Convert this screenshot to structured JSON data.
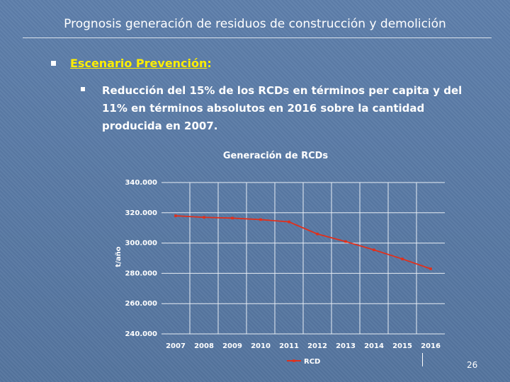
{
  "slide": {
    "title": "Prognosis generación de residuos de construcción y demolición",
    "bullet1_label": "Escenario Prevención",
    "bullet1_suffix": ":",
    "bullet2_text": "Reducción del 15% de los RCDs en términos per capita y del 11% en términos absolutos en 2016 sobre la cantidad producida en 2007.",
    "page_number": "26"
  },
  "colors": {
    "background": "#5a7aa6",
    "heading_yellow": "#ffee00",
    "series_red": "#e0301c"
  },
  "chart_data": {
    "type": "line",
    "title": "Generación de RCDs",
    "ylabel": "t/año",
    "xlabel": "",
    "ylim": [
      240000,
      340000
    ],
    "y_ticks": [
      "240.000",
      "260.000",
      "280.000",
      "300.000",
      "320.000",
      "340.000"
    ],
    "categories": [
      "2007",
      "2008",
      "2009",
      "2010",
      "2011",
      "2012",
      "2013",
      "2014",
      "2015",
      "2016"
    ],
    "series": [
      {
        "name": "RCD",
        "color": "#e0301c",
        "values": [
          318000,
          317000,
          316500,
          315500,
          314000,
          306000,
          301000,
          295500,
          289500,
          283000
        ]
      }
    ],
    "legend_position": "bottom",
    "grid": true
  }
}
